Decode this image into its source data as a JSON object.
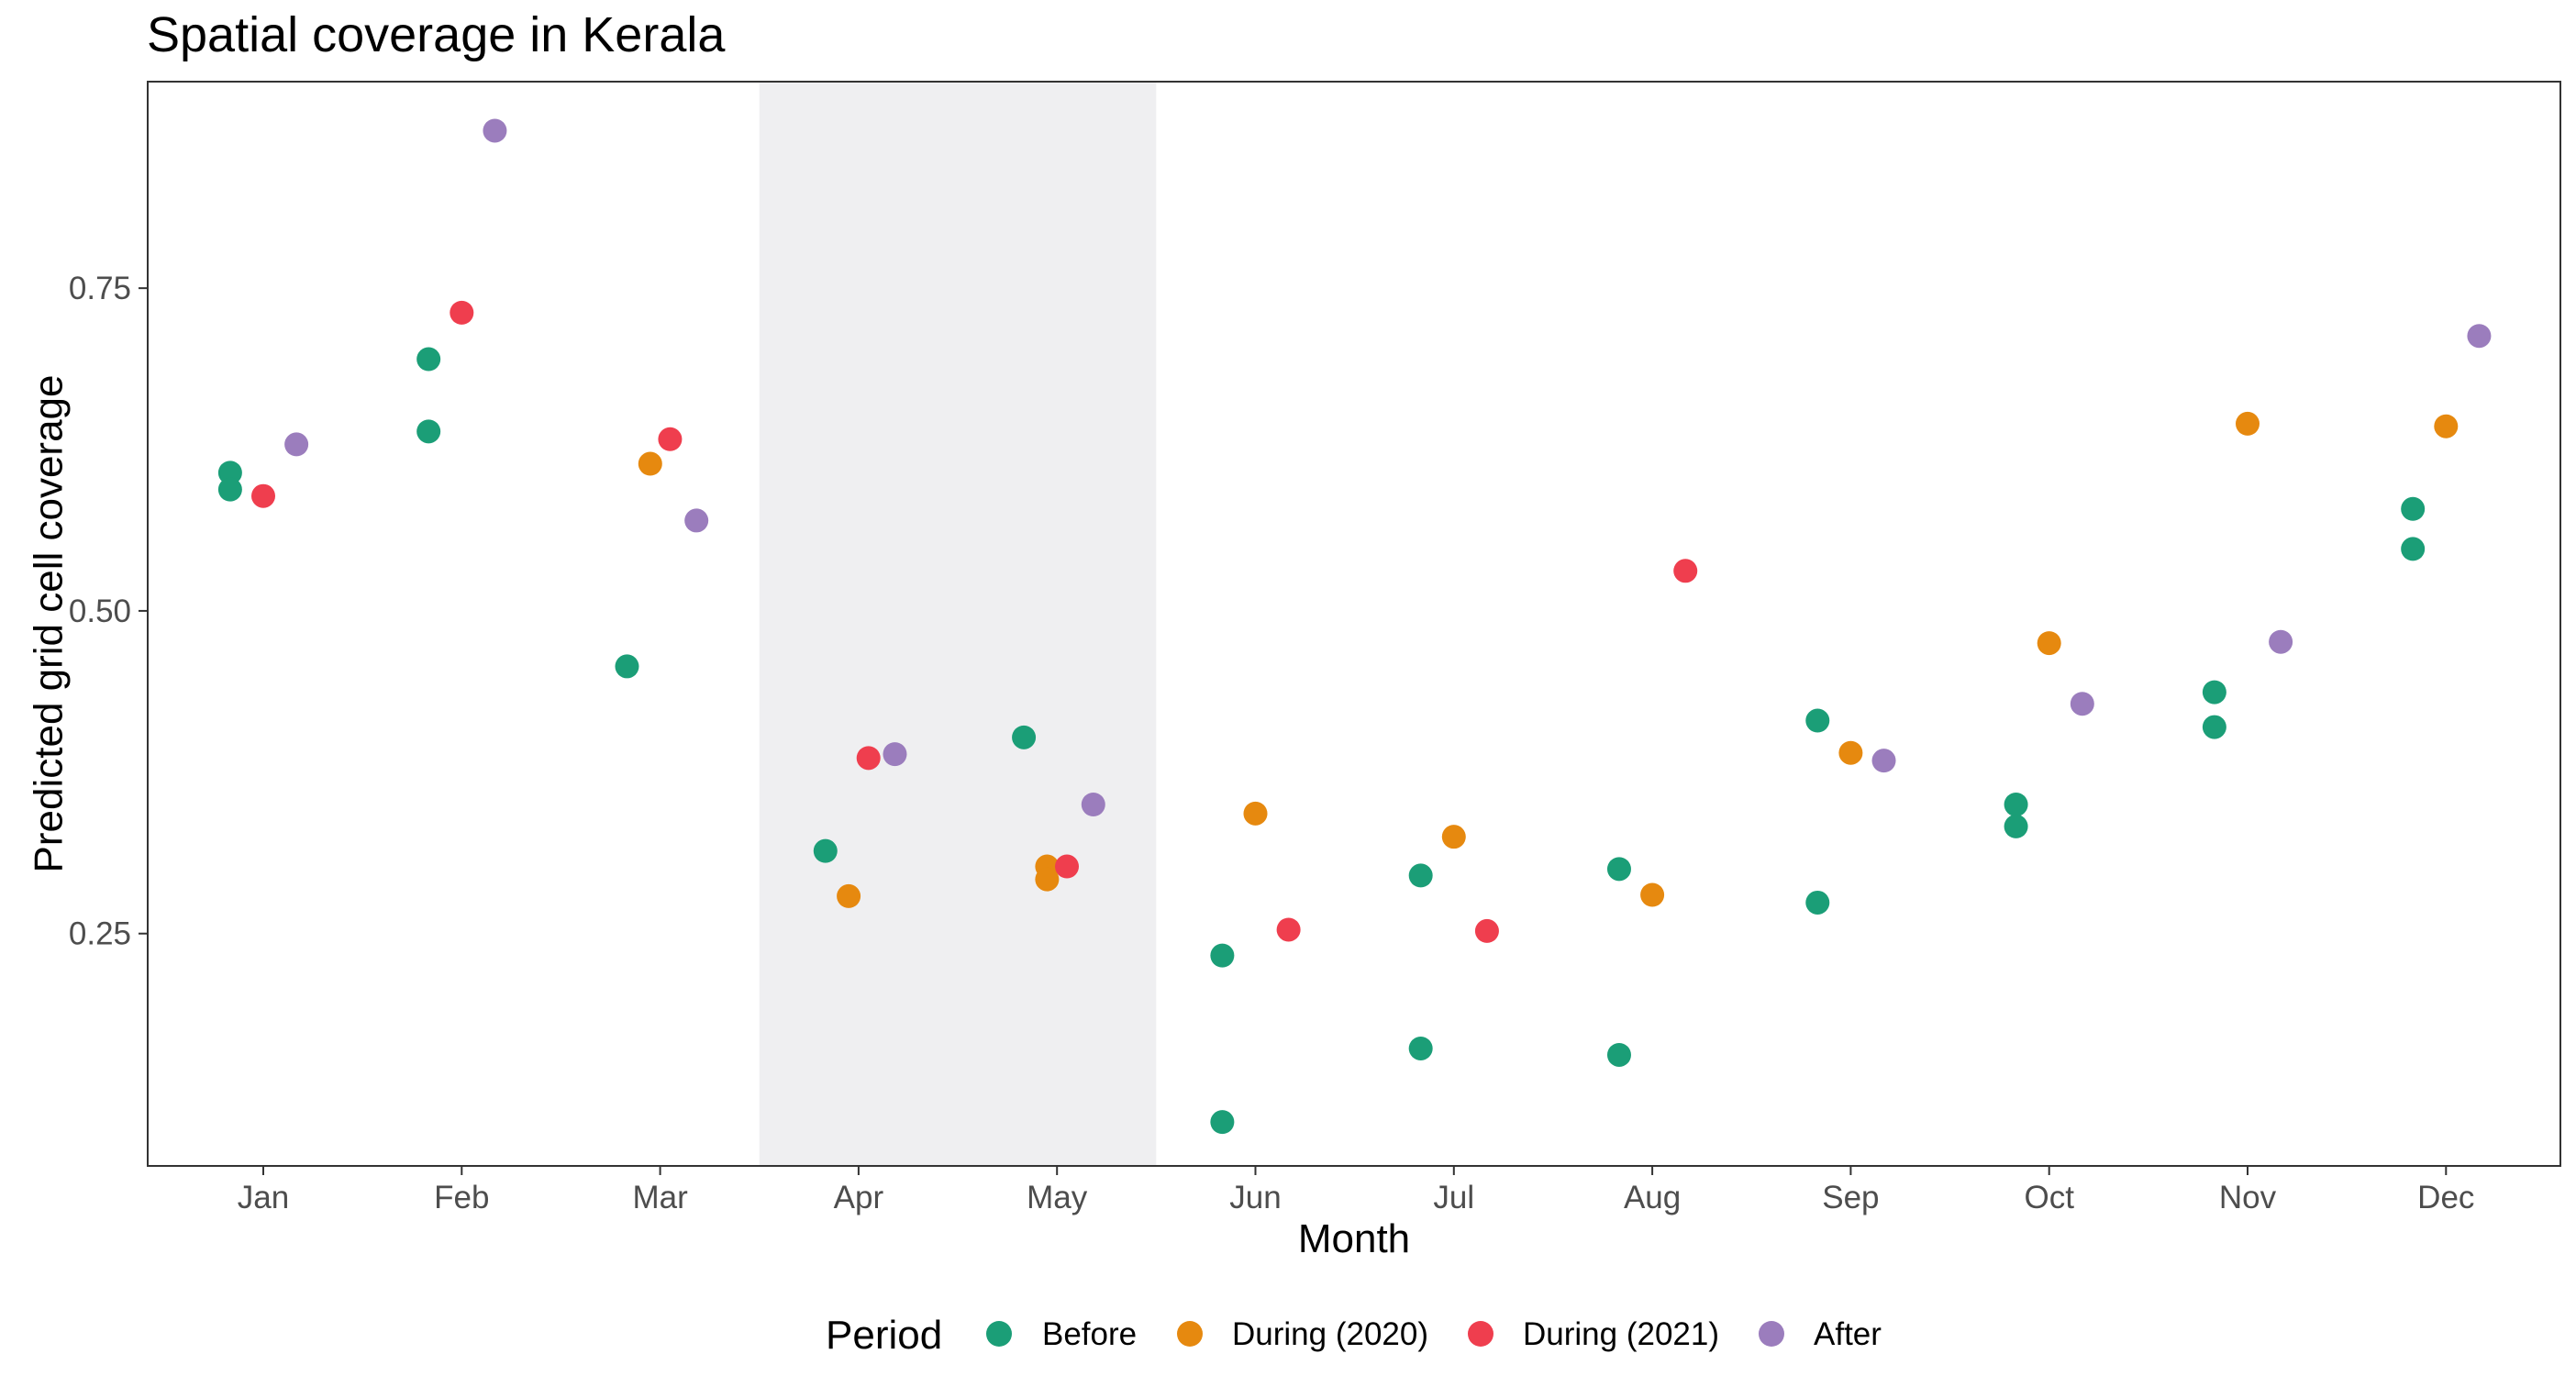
{
  "chart_data": {
    "type": "scatter",
    "title": "Spatial coverage in Kerala",
    "xlabel": "Month",
    "ylabel": "Predicted grid cell coverage",
    "categories": [
      "Jan",
      "Feb",
      "Mar",
      "Apr",
      "May",
      "Jun",
      "Jul",
      "Aug",
      "Sep",
      "Oct",
      "Nov",
      "Dec"
    ],
    "ylim": [
      0.07,
      0.91
    ],
    "yticks": [
      0.25,
      0.5,
      0.75
    ],
    "ytick_labels": [
      "0.25",
      "0.50",
      "0.75"
    ],
    "shaded_region": {
      "from_month": "Apr",
      "to_month": "May",
      "color": "#efeff1"
    },
    "grid": false,
    "legend": {
      "title": "Period",
      "placement": "bottom"
    },
    "series": [
      {
        "name": "Before",
        "color": "#1b9e77",
        "points": [
          {
            "month": "Jan",
            "offset": -0.167,
            "y": 0.607
          },
          {
            "month": "Jan",
            "offset": -0.167,
            "y": 0.594
          },
          {
            "month": "Feb",
            "offset": -0.167,
            "y": 0.695
          },
          {
            "month": "Feb",
            "offset": -0.167,
            "y": 0.639
          },
          {
            "month": "Mar",
            "offset": -0.167,
            "y": 0.457
          },
          {
            "month": "Apr",
            "offset": -0.167,
            "y": 0.314
          },
          {
            "month": "May",
            "offset": -0.167,
            "y": 0.402
          },
          {
            "month": "Jun",
            "offset": -0.167,
            "y": 0.233
          },
          {
            "month": "Jun",
            "offset": -0.167,
            "y": 0.104
          },
          {
            "month": "Jul",
            "offset": -0.167,
            "y": 0.295
          },
          {
            "month": "Jul",
            "offset": -0.167,
            "y": 0.161
          },
          {
            "month": "Aug",
            "offset": -0.167,
            "y": 0.3
          },
          {
            "month": "Aug",
            "offset": -0.167,
            "y": 0.156
          },
          {
            "month": "Sep",
            "offset": -0.167,
            "y": 0.415
          },
          {
            "month": "Sep",
            "offset": -0.167,
            "y": 0.274
          },
          {
            "month": "Oct",
            "offset": -0.167,
            "y": 0.35
          },
          {
            "month": "Oct",
            "offset": -0.167,
            "y": 0.333
          },
          {
            "month": "Nov",
            "offset": -0.167,
            "y": 0.437
          },
          {
            "month": "Nov",
            "offset": -0.167,
            "y": 0.41
          },
          {
            "month": "Dec",
            "offset": -0.167,
            "y": 0.579
          },
          {
            "month": "Dec",
            "offset": -0.167,
            "y": 0.548
          }
        ]
      },
      {
        "name": "During (2020)",
        "color": "#e6890f",
        "points": [
          {
            "month": "Mar",
            "offset": -0.05,
            "y": 0.614
          },
          {
            "month": "Apr",
            "offset": -0.05,
            "y": 0.279
          },
          {
            "month": "May",
            "offset": -0.05,
            "y": 0.302
          },
          {
            "month": "May",
            "offset": -0.05,
            "y": 0.292
          },
          {
            "month": "Jun",
            "offset": 0.0,
            "y": 0.343
          },
          {
            "month": "Jul",
            "offset": 0.0,
            "y": 0.325
          },
          {
            "month": "Aug",
            "offset": 0.0,
            "y": 0.28
          },
          {
            "month": "Sep",
            "offset": 0.0,
            "y": 0.39
          },
          {
            "month": "Oct",
            "offset": 0.0,
            "y": 0.475
          },
          {
            "month": "Nov",
            "offset": 0.0,
            "y": 0.645
          },
          {
            "month": "Dec",
            "offset": 0.0,
            "y": 0.643
          }
        ]
      },
      {
        "name": "During (2021)",
        "color": "#ef3e4e",
        "points": [
          {
            "month": "Jan",
            "offset": 0.0,
            "y": 0.589
          },
          {
            "month": "Feb",
            "offset": 0.0,
            "y": 0.731
          },
          {
            "month": "Mar",
            "offset": 0.05,
            "y": 0.633
          },
          {
            "month": "Apr",
            "offset": 0.05,
            "y": 0.386
          },
          {
            "month": "May",
            "offset": 0.05,
            "y": 0.302
          },
          {
            "month": "Jun",
            "offset": 0.167,
            "y": 0.253
          },
          {
            "month": "Jul",
            "offset": 0.167,
            "y": 0.252
          },
          {
            "month": "Aug",
            "offset": 0.167,
            "y": 0.531
          }
        ]
      },
      {
        "name": "After",
        "color": "#9b7dbd",
        "points": [
          {
            "month": "Jan",
            "offset": 0.167,
            "y": 0.629
          },
          {
            "month": "Feb",
            "offset": 0.167,
            "y": 0.872
          },
          {
            "month": "Mar",
            "offset": 0.183,
            "y": 0.57
          },
          {
            "month": "Apr",
            "offset": 0.183,
            "y": 0.389
          },
          {
            "month": "May",
            "offset": 0.183,
            "y": 0.35
          },
          {
            "month": "Sep",
            "offset": 0.167,
            "y": 0.384
          },
          {
            "month": "Oct",
            "offset": 0.167,
            "y": 0.428
          },
          {
            "month": "Nov",
            "offset": 0.167,
            "y": 0.476
          },
          {
            "month": "Dec",
            "offset": 0.167,
            "y": 0.713
          }
        ]
      }
    ]
  }
}
